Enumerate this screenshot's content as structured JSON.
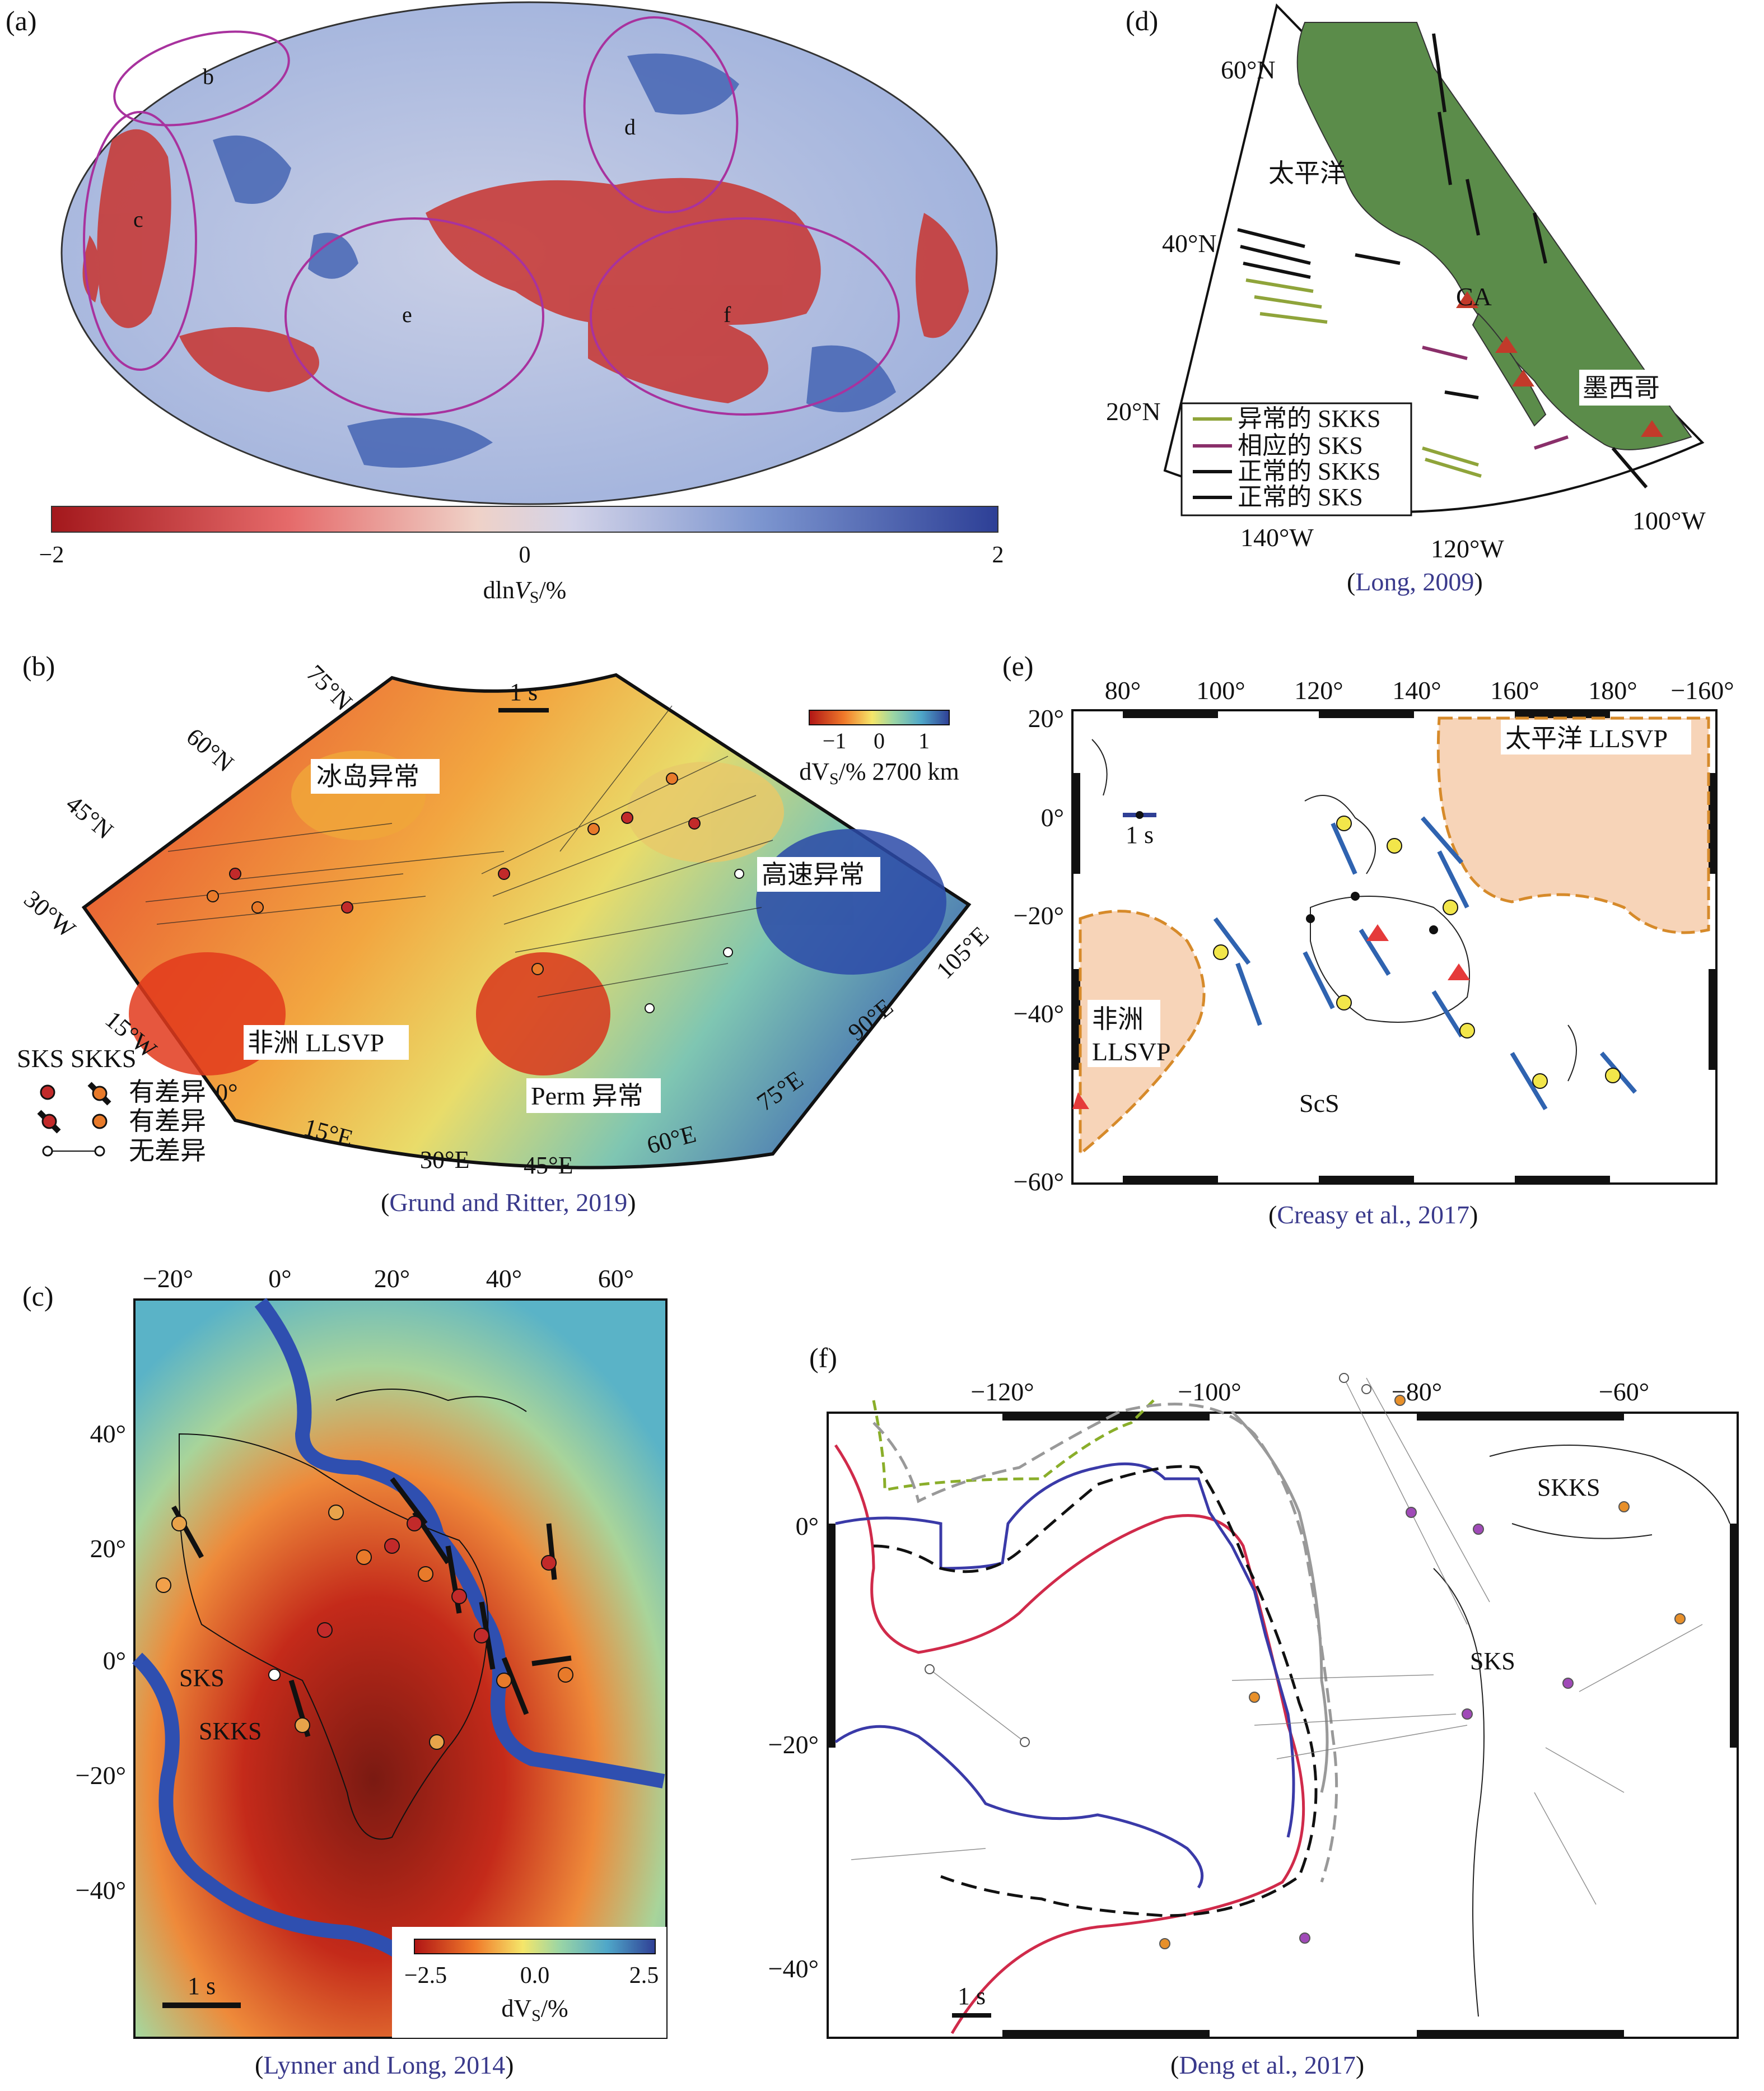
{
  "panels": {
    "a": {
      "letter": "(a)",
      "regions": [
        "b",
        "c",
        "d",
        "e",
        "f"
      ],
      "colorbar": {
        "ticks": [
          "−2",
          "0",
          "2"
        ],
        "label_prefix": "dln",
        "label_var": "V",
        "label_sub": "S",
        "label_suffix": "/%"
      }
    },
    "b": {
      "letter": "(b)",
      "scale": "1 s",
      "colorbar_ticks": [
        "−1",
        "0",
        "1"
      ],
      "colorbar_label": "dV",
      "colorbar_sub": "S",
      "colorbar_suffix": "/% 2700 km",
      "lat_labels": [
        "75°N",
        "60°N",
        "45°N",
        "30°W"
      ],
      "lon_labels": [
        "15°W",
        "0°",
        "15°E",
        "30°E",
        "45°E",
        "60°E",
        "75°E",
        "90°E",
        "105°E"
      ],
      "labels": [
        "冰岛异常",
        "高速异常",
        "非洲 LLSVP",
        "Perm 异常"
      ],
      "legend_header": "SKS SKKS",
      "legend": [
        "有差异",
        "有差异",
        "无差异"
      ],
      "caption": "Grund and Ritter, 2019"
    },
    "c": {
      "letter": "(c)",
      "top_ticks": [
        "−20°",
        "0°",
        "20°",
        "40°",
        "60°"
      ],
      "left_ticks": [
        "40°",
        "20°",
        "0°",
        "−20°",
        "−40°"
      ],
      "labels": [
        "SKS",
        "SKKS"
      ],
      "scale": "1 s",
      "colorbar_ticks": [
        "−2.5",
        "0.0",
        "2.5"
      ],
      "colorbar_label": "dV",
      "colorbar_sub": "S",
      "colorbar_suffix": "/%",
      "caption": "Lynner and Long, 2014"
    },
    "d": {
      "letter": "(d)",
      "lat_labels": [
        "60°N",
        "40°N",
        "20°N"
      ],
      "lon_labels": [
        "140°W",
        "120°W",
        "100°W"
      ],
      "labels": [
        "太平洋",
        "CA",
        "墨西哥"
      ],
      "legend": [
        "异常的 SKKS",
        "相应的 SKS",
        "正常的 SKKS",
        "正常的 SKS"
      ],
      "caption": "Long, 2009"
    },
    "e": {
      "letter": "(e)",
      "top_ticks": [
        "80°",
        "100°",
        "120°",
        "140°",
        "160°",
        "180°",
        "−160°"
      ],
      "left_ticks": [
        "20°",
        "0°",
        "−20°",
        "−40°",
        "−60°"
      ],
      "labels": [
        "太平洋 LLSVP",
        "非洲",
        "LLSVP",
        "ScS"
      ],
      "scale": "1 s",
      "caption": "Creasy et al., 2017"
    },
    "f": {
      "letter": "(f)",
      "top_ticks": [
        "−120°",
        "−100°",
        "−80°",
        "−60°"
      ],
      "left_ticks": [
        "0°",
        "−20°",
        "−40°"
      ],
      "labels": [
        "SKKS",
        "SKS"
      ],
      "scale": "1 s",
      "caption": "Deng et al., 2017"
    }
  },
  "colors": {
    "slow": "#b51f1f",
    "fast": "#2e4f9e",
    "land": "#5b8c4a",
    "llsvp": "#f7d4b8",
    "caption": "#3a3a8c"
  }
}
